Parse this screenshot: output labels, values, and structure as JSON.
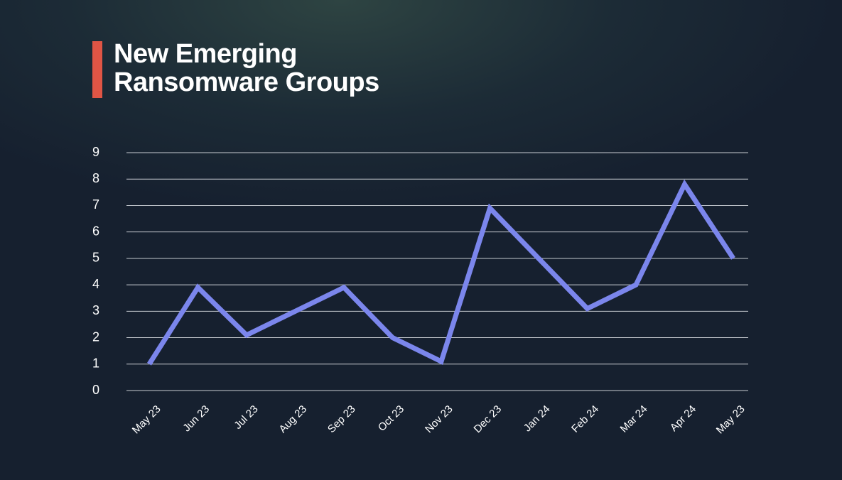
{
  "chart_data": {
    "type": "line",
    "title": "New Emerging Ransomware Groups",
    "categories": [
      "May 23",
      "Jun 23",
      "Jul 23",
      "Aug 23",
      "Sep 23",
      "Oct 23",
      "Nov 23",
      "Dec 23",
      "Jan 24",
      "Feb 24",
      "Mar 24",
      "Apr 24",
      "May 23"
    ],
    "values": [
      1,
      3.9,
      2.1,
      3,
      3.9,
      2,
      1.1,
      6.9,
      5,
      3.1,
      4,
      7.8,
      5
    ],
    "color": "#7b86ec",
    "ylim": [
      0,
      9
    ],
    "yticks": [
      0,
      1,
      2,
      3,
      4,
      5,
      6,
      7,
      8,
      9
    ],
    "grid": true
  }
}
